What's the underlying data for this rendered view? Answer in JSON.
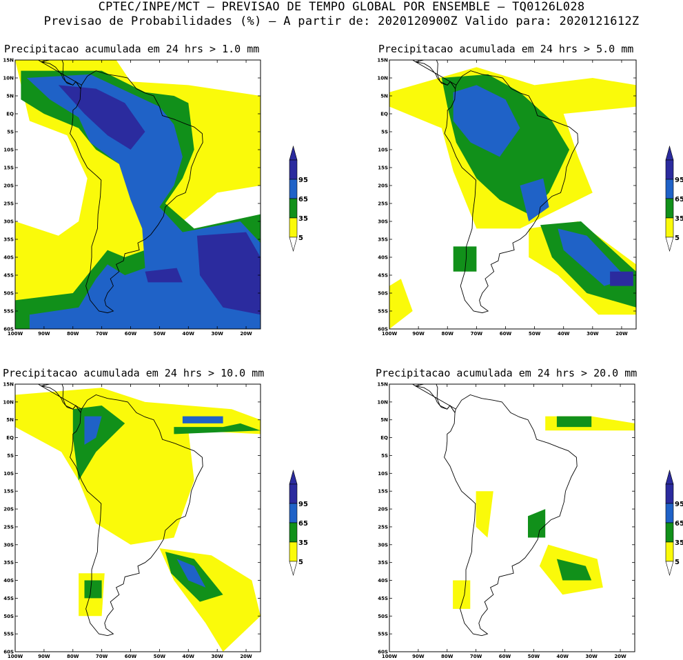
{
  "header": {
    "line1": "CPTEC/INPE/MCT – PREVISAO DE TEMPO GLOBAL POR ENSEMBLE – TQ0126L028",
    "line2": "Previsao de Probabilidades (%) –  A partir de: 2020120900Z  Valido para: 2020121612Z"
  },
  "panels": [
    {
      "title": "Precipitacao acumulada em 24 hrs > 1.0 mm"
    },
    {
      "title": "Precipitacao acumulada em 24 hrs > 5.0 mm"
    },
    {
      "title": "Precipitacao acumulada em 24 hrs > 10.0 mm"
    },
    {
      "title": "Precipitacao acumulada em 24 hrs > 20.0 mm"
    }
  ],
  "lat_labels": [
    "15N",
    "10N",
    "5N",
    "EQ",
    "5S",
    "10S",
    "15S",
    "20S",
    "25S",
    "30S",
    "35S",
    "40S",
    "45S",
    "50S",
    "55S",
    "60S"
  ],
  "lon_labels": [
    "100W",
    "90W",
    "80W",
    "70W",
    "60W",
    "50W",
    "40W",
    "30W",
    "20W"
  ],
  "colorbar": {
    "labels": [
      "95",
      "65",
      "35",
      "5"
    ],
    "colors": {
      "c95": "#2b2b9e",
      "c65": "#1f62c7",
      "c35": "#11901a",
      "c5": "#fafa0a",
      "white": "#ffffff"
    }
  }
}
